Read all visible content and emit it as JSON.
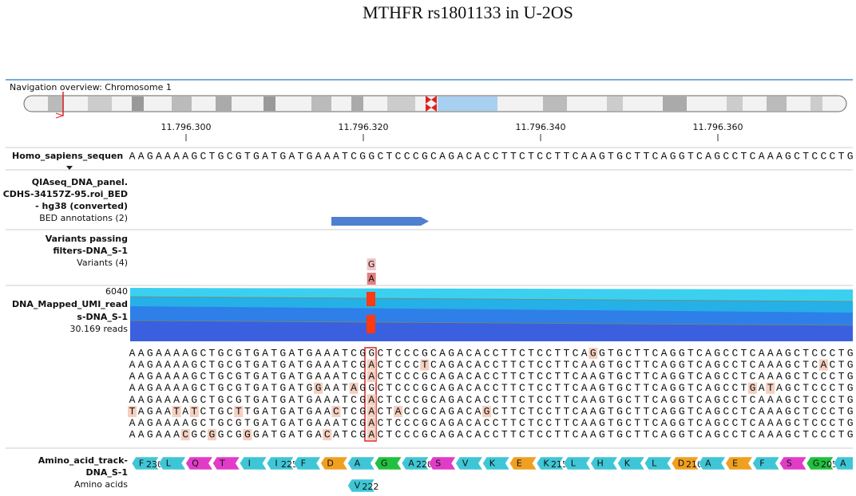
{
  "title": "MTHFR rs1801133 in U-2OS",
  "navigation": "Navigation overview: Chromosome 1",
  "ruler": [
    "11.796.300",
    "11.796.320",
    "11.796.340",
    "11.796.360"
  ],
  "reference": {
    "label": "Homo_sapiens_sequen",
    "sequence": "AAGAAAAGCTGCGTGATGATGAAATCGGCTCCCGCAGACACCTTCTCCTTCAAGTGCTTCAGGTCAGCCTCAAAGCTCCCTG"
  },
  "bed": {
    "label_lines": [
      "QIAseq_DNA_panel.",
      "CDHS-34157Z-95.roi_BED",
      "- hg38 (converted)"
    ],
    "sublabel": "BED annotations (2)"
  },
  "variants": {
    "label_lines": [
      "Variants passing",
      "filters-DNA_S-1"
    ],
    "sublabel": "Variants (4)",
    "alleles": [
      "G",
      "A"
    ]
  },
  "reads": {
    "max": "6040",
    "label_lines": [
      "DNA_Mapped_UMI_read",
      "s-DNA_S-1"
    ],
    "sublabel": "30.169 reads",
    "sequences": [
      "AAGAAAAGCTGCGTGATGATGAAATCGGCTCCCGCAGACACCTTCTCCTTCAGGTGCTTCAGGTCAGCCTCAAAGCTCCCTG",
      "AAGAAAAGCTGCGTGATGATGAAATCGACTCCCTCAGACACCTTCTCCTTCAAGTGCTTCAGGTCAGCCTCAAAGCTCACTG",
      "AAGAAAAGCTGCGTGATGATGAAATCGACTCCCGCAGACACCTTCTCCTTCAAGTGCTTCAGGTCAGCCTCAAAGCTCCCTG",
      "AAGAAAAGCTGCGTGATGATGGAATAGGCTCCCGCAGACACCTTCTCCTTCAAGTGCTTCAGGTCAGCCTGATAGCTCCCTG",
      "AAGAAAAGCTGCGTGATGATGAAATCGACTCCCGCAGACACCTTCTCCTTCAAGTGCTTCAGGTCAGCCTCAAAGCTCCCTG",
      "TAGAATATCTGCTTGATGATGAACTCGACTACCGCAGACAGCTTCTCCTTCAAGTGCTTCAGGTCAGCCTCAAAGCTCCCTG",
      "AAGAAAAGCTGCGTGATGATGAAATCGACTCCCGCAGACACCTTCTCCTTCAAGTGCTTCAGGTCAGCCTCAAAGCTCCCTG",
      "AAGAAACGCGGCGGGATGATGACATCGACTCCCGCAGACACCTTCTCCTTCAAGTGCTTCAGGTCAGCCTCAAAGCTCCCTG"
    ]
  },
  "amino_acids": {
    "label_lines": [
      "Amino_acid_track-",
      "DNA_S-1"
    ],
    "sublabel": "Amino acids",
    "items": [
      {
        "aa": "F",
        "num": "230",
        "color": "#3fc6d6"
      },
      {
        "aa": "L",
        "color": "#3fc6d6"
      },
      {
        "aa": "Q",
        "color": "#e03cc8"
      },
      {
        "aa": "T",
        "color": "#e03cc8"
      },
      {
        "aa": "I",
        "color": "#3fc6d6"
      },
      {
        "aa": "I",
        "num": "225",
        "color": "#3fc6d6"
      },
      {
        "aa": "F",
        "color": "#3fc6d6"
      },
      {
        "aa": "D",
        "color": "#f0a020"
      },
      {
        "aa": "A",
        "color": "#3fc6d6"
      },
      {
        "aa": "G",
        "color": "#22c040"
      },
      {
        "aa": "A",
        "num": "220",
        "color": "#3fc6d6"
      },
      {
        "aa": "S",
        "color": "#e03cc8"
      },
      {
        "aa": "V",
        "color": "#3fc6d6"
      },
      {
        "aa": "K",
        "color": "#3fc6d6"
      },
      {
        "aa": "E",
        "color": "#f0a020"
      },
      {
        "aa": "K",
        "num": "215",
        "color": "#3fc6d6"
      },
      {
        "aa": "L",
        "color": "#3fc6d6"
      },
      {
        "aa": "H",
        "color": "#3fc6d6"
      },
      {
        "aa": "K",
        "color": "#3fc6d6"
      },
      {
        "aa": "L",
        "color": "#3fc6d6"
      },
      {
        "aa": "D",
        "num": "210",
        "color": "#f0a020"
      },
      {
        "aa": "A",
        "color": "#3fc6d6"
      },
      {
        "aa": "E",
        "color": "#f0a020"
      },
      {
        "aa": "F",
        "color": "#3fc6d6"
      },
      {
        "aa": "S",
        "color": "#e03cc8"
      },
      {
        "aa": "G",
        "num": "205",
        "color": "#22c040"
      },
      {
        "aa": "A",
        "color": "#3fc6d6"
      }
    ],
    "variant": {
      "aa": "V",
      "num": "222",
      "color": "#3fc6d6"
    }
  }
}
